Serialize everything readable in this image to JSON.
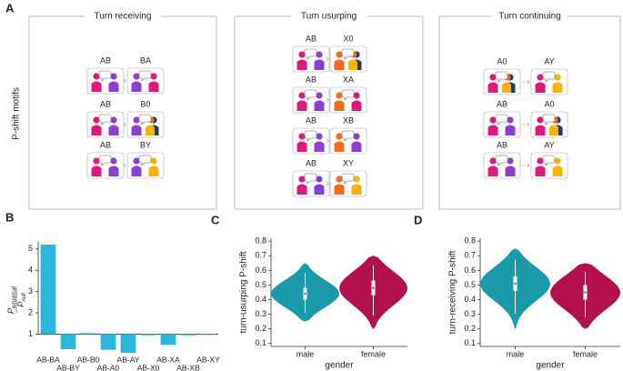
{
  "panel_a": {
    "label": "A",
    "ylabel": "P-shift motifs",
    "groups": [
      {
        "title": "Turn receiving",
        "motifs": [
          [
            "AB",
            "BA"
          ],
          [
            "AB",
            "B0"
          ],
          [
            "AB",
            "BY"
          ]
        ]
      },
      {
        "title": "Turn usurping",
        "motifs": [
          [
            "AB",
            "X0"
          ],
          [
            "AB",
            "XA"
          ],
          [
            "AB",
            "XB"
          ],
          [
            "AB",
            "XY"
          ]
        ]
      },
      {
        "title": "Turn continuing",
        "motifs": [
          [
            "A0",
            "AY"
          ],
          [
            "AB",
            "A0"
          ],
          [
            "AB",
            "AY"
          ]
        ]
      }
    ]
  },
  "chart_data": [
    {
      "type": "bar",
      "panel_label": "B",
      "ylabel": {
        "numerator": "P",
        "numerator_sub": "empirical",
        "denominator": "P",
        "denominator_sub": "null"
      },
      "categories": [
        "AB-BA",
        "AB-BY",
        "AB-B0",
        "AB-A0",
        "AB-AY",
        "AB-X0",
        "AB-XA",
        "AB-XB",
        "AB-XY"
      ],
      "values": [
        5.2,
        0.3,
        1.05,
        0.27,
        0.13,
        0.95,
        0.5,
        0.95,
        0.97
      ],
      "color": "#2bb7db",
      "bar_baseline": 1,
      "ylim": [
        0,
        5.5
      ],
      "yticks": [
        1,
        2,
        3,
        4,
        5
      ]
    },
    {
      "type": "violin",
      "panel_label": "C",
      "xlabel": "gender",
      "ylabel": "turn-usurping P-shift",
      "categories": [
        "male",
        "female"
      ],
      "violins": [
        {
          "color": "#1a9aaa",
          "min": 0.25,
          "q1": 0.4,
          "median": 0.44,
          "q3": 0.48,
          "max": 0.65
        },
        {
          "color": "#b3104e",
          "min": 0.2,
          "q1": 0.43,
          "median": 0.48,
          "q3": 0.53,
          "max": 0.7
        }
      ],
      "ylim": [
        0.08,
        0.82
      ],
      "yticks": [
        0.1,
        0.2,
        0.3,
        0.4,
        0.5,
        0.6,
        0.7,
        0.8
      ]
    },
    {
      "type": "violin",
      "panel_label": "D",
      "xlabel": "gender",
      "ylabel": "turn-receiving P-shift",
      "categories": [
        "male",
        "female"
      ],
      "violins": [
        {
          "color": "#1a9aaa",
          "min": 0.2,
          "q1": 0.46,
          "median": 0.51,
          "q3": 0.56,
          "max": 0.75
        },
        {
          "color": "#b3104e",
          "min": 0.2,
          "q1": 0.4,
          "median": 0.45,
          "q3": 0.5,
          "max": 0.65
        }
      ],
      "ylim": [
        0.08,
        0.82
      ],
      "yticks": [
        0.1,
        0.2,
        0.3,
        0.4,
        0.5,
        0.6,
        0.7,
        0.8
      ]
    }
  ]
}
